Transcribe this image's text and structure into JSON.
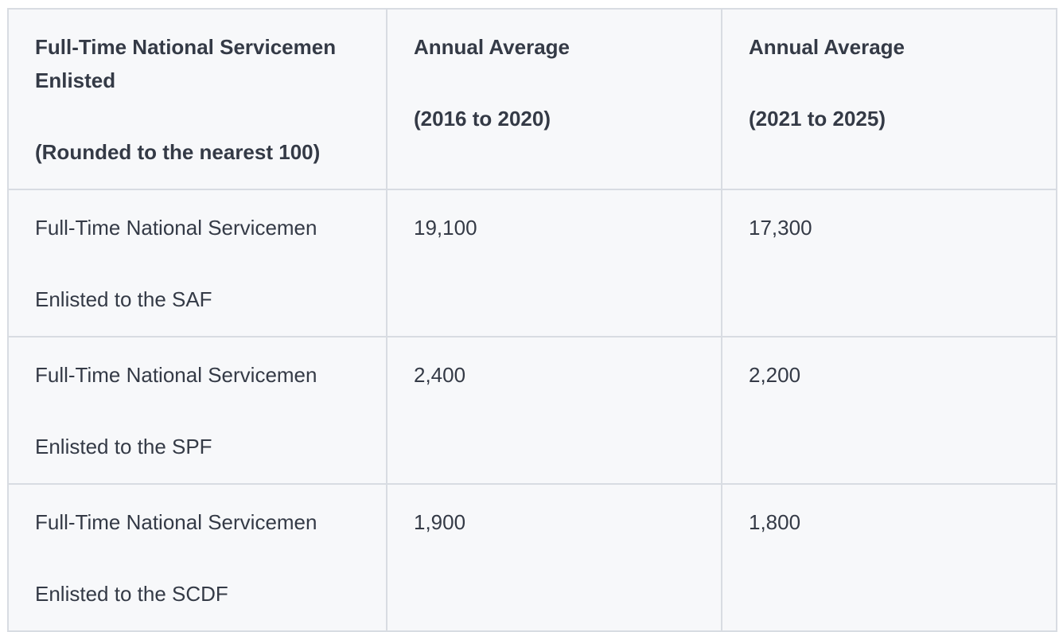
{
  "table": {
    "header": [
      [
        "Full-Time National Servicemen Enlisted",
        "(Rounded to the nearest 100)"
      ],
      [
        "Annual Average",
        "(2016 to 2020)"
      ],
      [
        "Annual Average",
        "(2021 to 2025)"
      ]
    ],
    "rows": [
      [
        [
          "Full-Time National Servicemen",
          "Enlisted to the SAF"
        ],
        "19,100",
        "17,300"
      ],
      [
        [
          "Full-Time National Servicemen",
          "Enlisted to the SPF"
        ],
        "2,400",
        "2,200"
      ],
      [
        [
          "Full-Time National Servicemen",
          "Enlisted to the SCDF"
        ],
        "1,900",
        "1,800"
      ]
    ]
  }
}
